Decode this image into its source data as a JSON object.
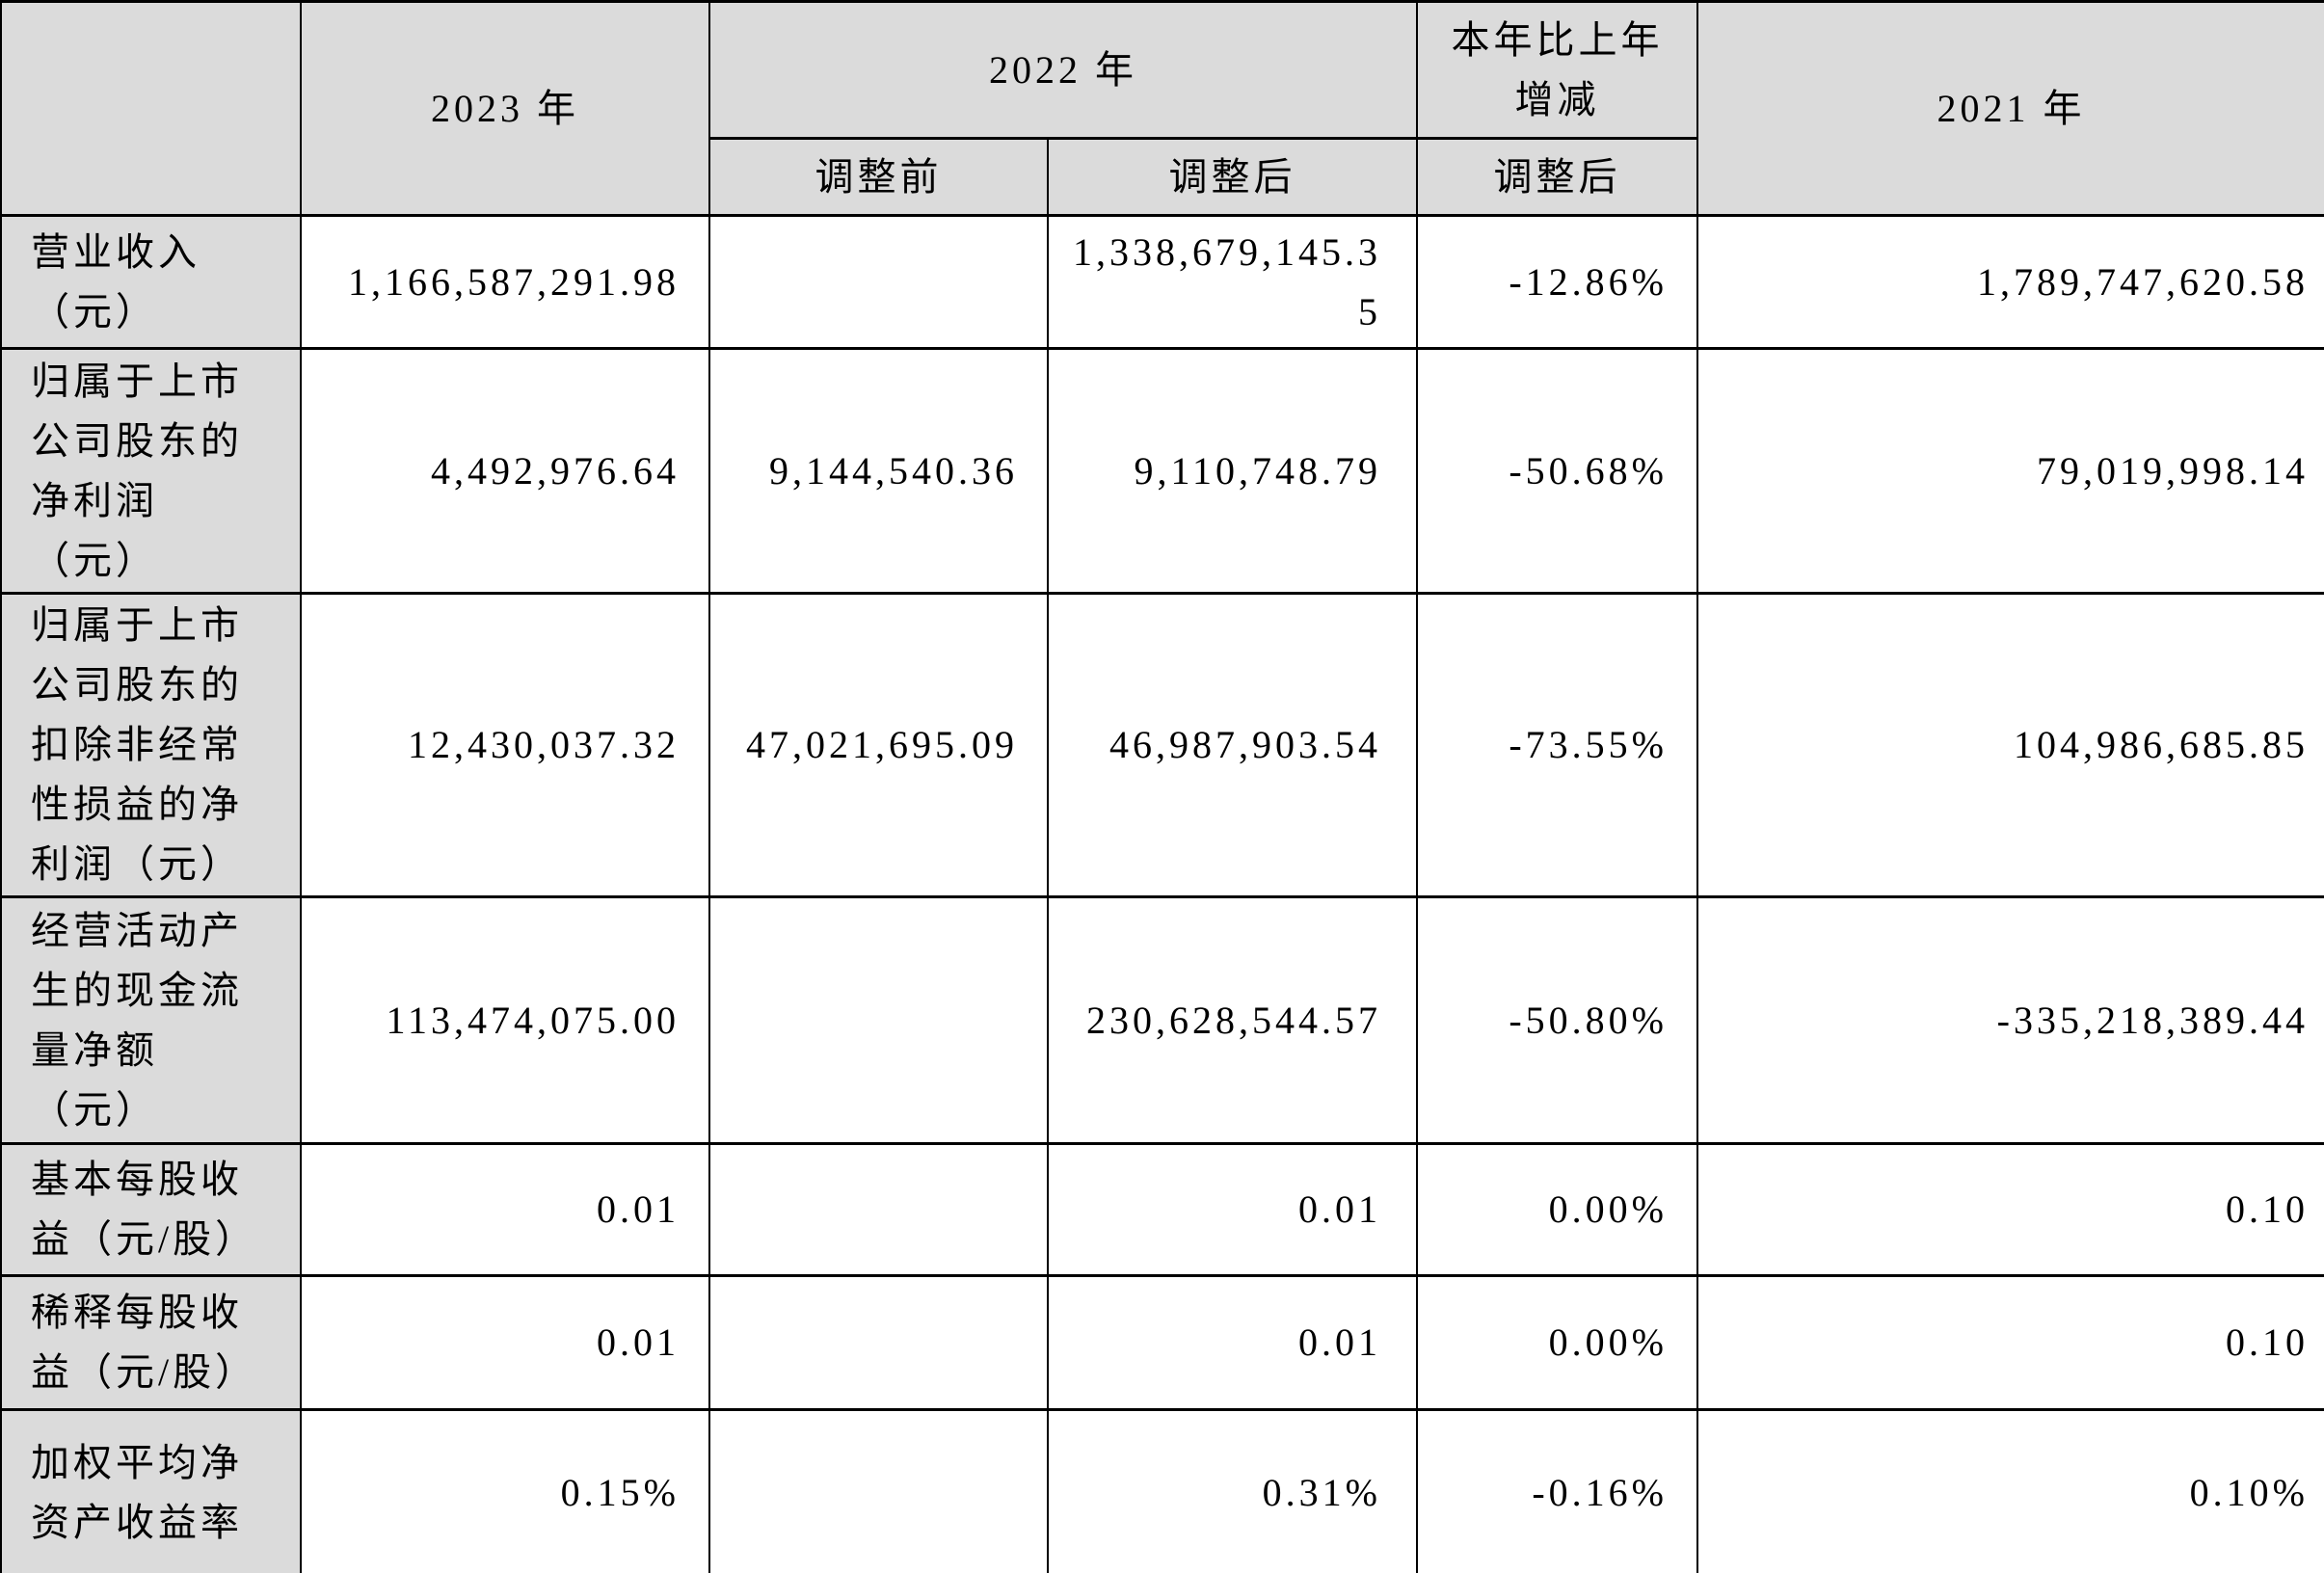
{
  "table": {
    "header": {
      "corner": "",
      "col_2023": "2023 年",
      "col_2022": "2022 年",
      "col_change": "本年比上年增减",
      "col_2021": "2021 年",
      "sub_before": "调整前",
      "sub_after": "调整后",
      "sub_after_change": "调整后"
    },
    "rows": [
      {
        "label": "营业收入（元）",
        "y2023": "1,166,587,291.98",
        "before": "",
        "after": "1,338,679,145.35",
        "change": "-12.86%",
        "y2021": "1,789,747,620.58"
      },
      {
        "label": "归属于上市公司股东的净利润（元）",
        "y2023": "4,492,976.64",
        "before": "9,144,540.36",
        "after": "9,110,748.79",
        "change": "-50.68%",
        "y2021": "79,019,998.14"
      },
      {
        "label": "归属于上市公司股东的扣除非经常性损益的净利润（元）",
        "y2023": "12,430,037.32",
        "before": "47,021,695.09",
        "after": "46,987,903.54",
        "change": "-73.55%",
        "y2021": "104,986,685.85"
      },
      {
        "label": "经营活动产生的现金流量净额（元）",
        "y2023": "113,474,075.00",
        "before": "",
        "after": "230,628,544.57",
        "change": "-50.80%",
        "y2021": "-335,218,389.44"
      },
      {
        "label": "基本每股收益（元/股）",
        "y2023": "0.01",
        "before": "",
        "after": "0.01",
        "change": "0.00%",
        "y2021": "0.10"
      },
      {
        "label": "稀释每股收益（元/股）",
        "y2023": "0.01",
        "before": "",
        "after": "0.01",
        "change": "0.00%",
        "y2021": "0.10"
      },
      {
        "label": "加权平均净资产收益率",
        "y2023": "0.15%",
        "before": "",
        "after": "0.31%",
        "change": "-0.16%",
        "y2021": "0.10%"
      }
    ]
  }
}
